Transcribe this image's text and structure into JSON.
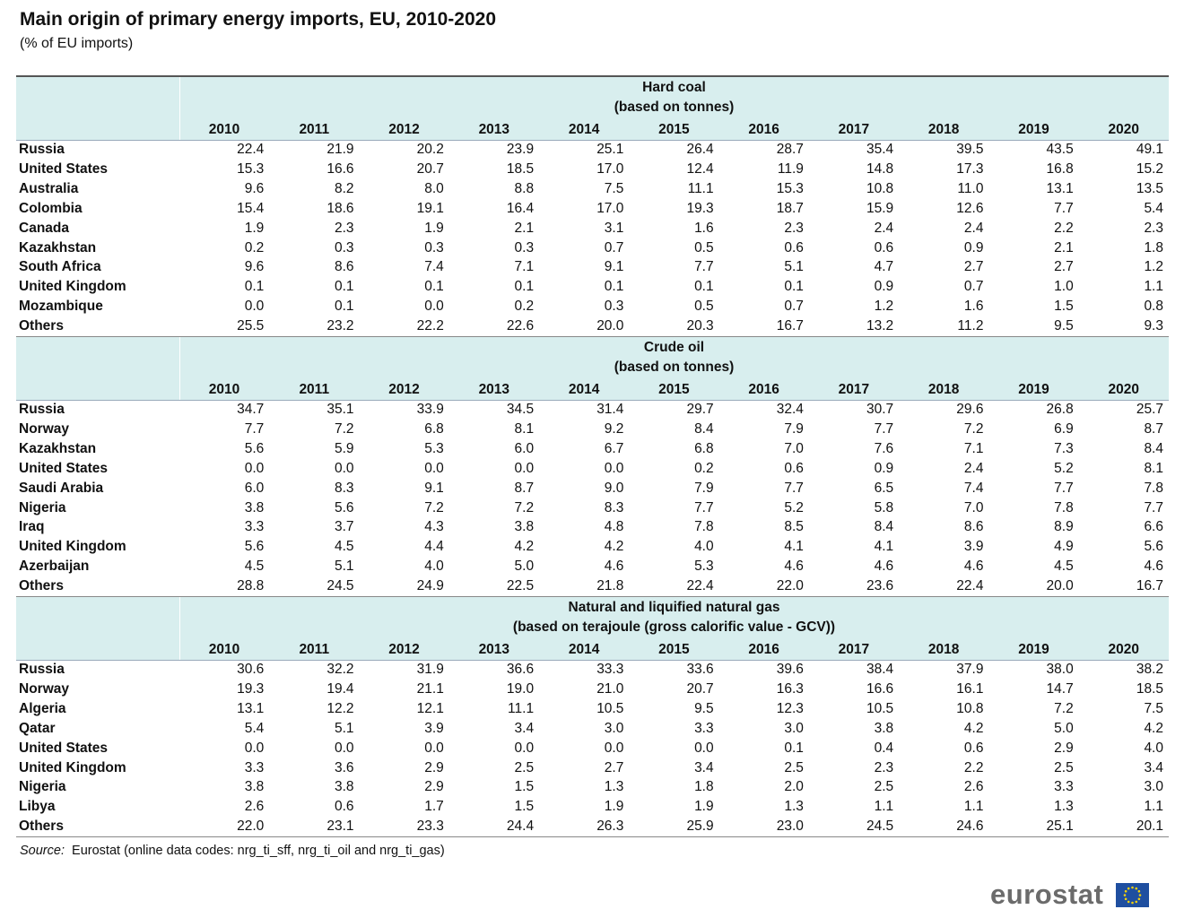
{
  "header": {
    "title": "Main origin of primary energy imports, EU, 2010-2020",
    "subtitle": "(% of EU imports)"
  },
  "table": {
    "years": [
      "2010",
      "2011",
      "2012",
      "2013",
      "2014",
      "2015",
      "2016",
      "2017",
      "2018",
      "2019",
      "2020"
    ],
    "sections": [
      {
        "title": "Hard coal",
        "subtitle": "(based on tonnes)",
        "rows": [
          {
            "label": "Russia",
            "values": [
              "22.4",
              "21.9",
              "20.2",
              "23.9",
              "25.1",
              "26.4",
              "28.7",
              "35.4",
              "39.5",
              "43.5",
              "49.1"
            ]
          },
          {
            "label": "United States",
            "values": [
              "15.3",
              "16.6",
              "20.7",
              "18.5",
              "17.0",
              "12.4",
              "11.9",
              "14.8",
              "17.3",
              "16.8",
              "15.2"
            ]
          },
          {
            "label": "Australia",
            "values": [
              "9.6",
              "8.2",
              "8.0",
              "8.8",
              "7.5",
              "11.1",
              "15.3",
              "10.8",
              "11.0",
              "13.1",
              "13.5"
            ]
          },
          {
            "label": "Colombia",
            "values": [
              "15.4",
              "18.6",
              "19.1",
              "16.4",
              "17.0",
              "19.3",
              "18.7",
              "15.9",
              "12.6",
              "7.7",
              "5.4"
            ]
          },
          {
            "label": "Canada",
            "values": [
              "1.9",
              "2.3",
              "1.9",
              "2.1",
              "3.1",
              "1.6",
              "2.3",
              "2.4",
              "2.4",
              "2.2",
              "2.3"
            ]
          },
          {
            "label": "Kazakhstan",
            "values": [
              "0.2",
              "0.3",
              "0.3",
              "0.3",
              "0.7",
              "0.5",
              "0.6",
              "0.6",
              "0.9",
              "2.1",
              "1.8"
            ]
          },
          {
            "label": "South Africa",
            "values": [
              "9.6",
              "8.6",
              "7.4",
              "7.1",
              "9.1",
              "7.7",
              "5.1",
              "4.7",
              "2.7",
              "2.7",
              "1.2"
            ]
          },
          {
            "label": "United Kingdom",
            "values": [
              "0.1",
              "0.1",
              "0.1",
              "0.1",
              "0.1",
              "0.1",
              "0.1",
              "0.9",
              "0.7",
              "1.0",
              "1.1"
            ]
          },
          {
            "label": "Mozambique",
            "values": [
              "0.0",
              "0.1",
              "0.0",
              "0.2",
              "0.3",
              "0.5",
              "0.7",
              "1.2",
              "1.6",
              "1.5",
              "0.8"
            ]
          },
          {
            "label": "Others",
            "values": [
              "25.5",
              "23.2",
              "22.2",
              "22.6",
              "20.0",
              "20.3",
              "16.7",
              "13.2",
              "11.2",
              "9.5",
              "9.3"
            ]
          }
        ]
      },
      {
        "title": "Crude oil",
        "subtitle": "(based on tonnes)",
        "rows": [
          {
            "label": "Russia",
            "values": [
              "34.7",
              "35.1",
              "33.9",
              "34.5",
              "31.4",
              "29.7",
              "32.4",
              "30.7",
              "29.6",
              "26.8",
              "25.7"
            ]
          },
          {
            "label": "Norway",
            "values": [
              "7.7",
              "7.2",
              "6.8",
              "8.1",
              "9.2",
              "8.4",
              "7.9",
              "7.7",
              "7.2",
              "6.9",
              "8.7"
            ]
          },
          {
            "label": "Kazakhstan",
            "values": [
              "5.6",
              "5.9",
              "5.3",
              "6.0",
              "6.7",
              "6.8",
              "7.0",
              "7.6",
              "7.1",
              "7.3",
              "8.4"
            ]
          },
          {
            "label": "United States",
            "values": [
              "0.0",
              "0.0",
              "0.0",
              "0.0",
              "0.0",
              "0.2",
              "0.6",
              "0.9",
              "2.4",
              "5.2",
              "8.1"
            ]
          },
          {
            "label": "Saudi Arabia",
            "values": [
              "6.0",
              "8.3",
              "9.1",
              "8.7",
              "9.0",
              "7.9",
              "7.7",
              "6.5",
              "7.4",
              "7.7",
              "7.8"
            ]
          },
          {
            "label": "Nigeria",
            "values": [
              "3.8",
              "5.6",
              "7.2",
              "7.2",
              "8.3",
              "7.7",
              "5.2",
              "5.8",
              "7.0",
              "7.8",
              "7.7"
            ]
          },
          {
            "label": "Iraq",
            "values": [
              "3.3",
              "3.7",
              "4.3",
              "3.8",
              "4.8",
              "7.8",
              "8.5",
              "8.4",
              "8.6",
              "8.9",
              "6.6"
            ]
          },
          {
            "label": "United Kingdom",
            "values": [
              "5.6",
              "4.5",
              "4.4",
              "4.2",
              "4.2",
              "4.0",
              "4.1",
              "4.1",
              "3.9",
              "4.9",
              "5.6"
            ]
          },
          {
            "label": "Azerbaijan",
            "values": [
              "4.5",
              "5.1",
              "4.0",
              "5.0",
              "4.6",
              "5.3",
              "4.6",
              "4.6",
              "4.6",
              "4.5",
              "4.6"
            ]
          },
          {
            "label": "Others",
            "values": [
              "28.8",
              "24.5",
              "24.9",
              "22.5",
              "21.8",
              "22.4",
              "22.0",
              "23.6",
              "22.4",
              "20.0",
              "16.7"
            ]
          }
        ]
      },
      {
        "title": "Natural and liquified natural gas",
        "subtitle": "(based on terajoule (gross calorific value - GCV))",
        "rows": [
          {
            "label": "Russia",
            "values": [
              "30.6",
              "32.2",
              "31.9",
              "36.6",
              "33.3",
              "33.6",
              "39.6",
              "38.4",
              "37.9",
              "38.0",
              "38.2"
            ]
          },
          {
            "label": "Norway",
            "values": [
              "19.3",
              "19.4",
              "21.1",
              "19.0",
              "21.0",
              "20.7",
              "16.3",
              "16.6",
              "16.1",
              "14.7",
              "18.5"
            ]
          },
          {
            "label": "Algeria",
            "values": [
              "13.1",
              "12.2",
              "12.1",
              "11.1",
              "10.5",
              "9.5",
              "12.3",
              "10.5",
              "10.8",
              "7.2",
              "7.5"
            ]
          },
          {
            "label": "Qatar",
            "values": [
              "5.4",
              "5.1",
              "3.9",
              "3.4",
              "3.0",
              "3.3",
              "3.0",
              "3.8",
              "4.2",
              "5.0",
              "4.2"
            ]
          },
          {
            "label": "United States",
            "values": [
              "0.0",
              "0.0",
              "0.0",
              "0.0",
              "0.0",
              "0.0",
              "0.1",
              "0.4",
              "0.6",
              "2.9",
              "4.0"
            ]
          },
          {
            "label": "United Kingdom",
            "values": [
              "3.3",
              "3.6",
              "2.9",
              "2.5",
              "2.7",
              "3.4",
              "2.5",
              "2.3",
              "2.2",
              "2.5",
              "3.4"
            ]
          },
          {
            "label": "Nigeria",
            "values": [
              "3.8",
              "3.8",
              "2.9",
              "1.5",
              "1.3",
              "1.8",
              "2.0",
              "2.5",
              "2.6",
              "3.3",
              "3.0"
            ]
          },
          {
            "label": "Libya",
            "values": [
              "2.6",
              "0.6",
              "1.7",
              "1.5",
              "1.9",
              "1.9",
              "1.3",
              "1.1",
              "1.1",
              "1.3",
              "1.1"
            ]
          },
          {
            "label": "Others",
            "values": [
              "22.0",
              "23.1",
              "23.3",
              "24.4",
              "26.3",
              "25.9",
              "23.0",
              "24.5",
              "24.6",
              "25.1",
              "20.1"
            ]
          }
        ]
      }
    ]
  },
  "footer": {
    "source_label": "Source:",
    "source": "Eurostat (online data codes: nrg_ti_sff, nrg_ti_oil and nrg_ti_gas)",
    "logo": "eurostat"
  }
}
